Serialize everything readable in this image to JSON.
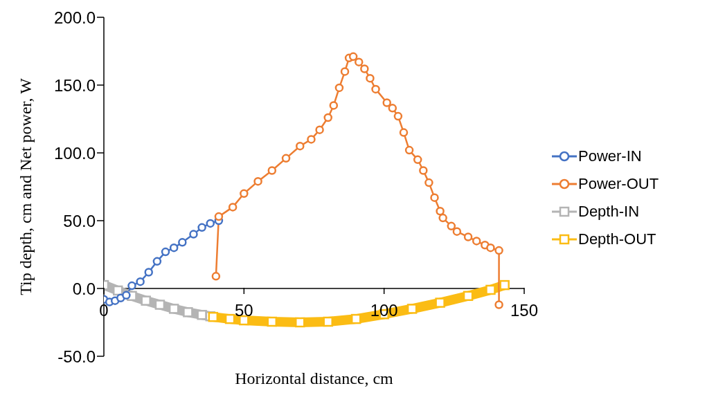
{
  "chart_data": {
    "type": "line",
    "xlabel": "Horizontal distance, cm",
    "ylabel": "Tip depth, cm and Net power, W",
    "xlim": [
      0,
      150
    ],
    "xticks": [
      0,
      50,
      100,
      150
    ],
    "ylim": [
      -50,
      200
    ],
    "yticks": [
      {
        "value": -50,
        "label": "-50.0"
      },
      {
        "value": 0,
        "label": "0.0"
      },
      {
        "value": 50,
        "label": "50.0"
      },
      {
        "value": 100,
        "label": "100.0"
      },
      {
        "value": 150,
        "label": "150.0"
      },
      {
        "value": 200,
        "label": "200.0"
      }
    ],
    "grid": false,
    "legend": "right",
    "series": [
      {
        "name": "Power-IN",
        "color": "#4472c4",
        "marker": "circle",
        "x": [
          0,
          2,
          4,
          6,
          8,
          10,
          13,
          16,
          19,
          22,
          25,
          28,
          32,
          35,
          38,
          41
        ],
        "values": [
          -8,
          -10,
          -9,
          -7,
          -5,
          2,
          5,
          12,
          20,
          27,
          30,
          34,
          40,
          45,
          48,
          50
        ]
      },
      {
        "name": "Power-OUT",
        "color": "#ed7d31",
        "marker": "circle",
        "x": [
          40,
          41,
          46,
          50,
          55,
          60,
          65,
          70,
          74,
          77,
          80,
          82,
          84,
          86,
          87.5,
          89,
          91,
          93,
          95,
          97,
          101,
          103,
          105,
          107,
          109,
          112,
          114,
          116,
          118,
          120,
          121,
          124,
          126,
          130,
          133,
          136,
          138,
          141,
          141
        ],
        "values": [
          9,
          53,
          60,
          70,
          79,
          87,
          96,
          105,
          110,
          117,
          126,
          135,
          148,
          160,
          170,
          171,
          167,
          162,
          155,
          147,
          137,
          133,
          127,
          115,
          102,
          95,
          87,
          78,
          67,
          57,
          52,
          46,
          42,
          38,
          35,
          32,
          30,
          28,
          -12
        ]
      },
      {
        "name": "Depth-IN",
        "color": "#b4b4b4",
        "marker": "square",
        "x": [
          0,
          5,
          10,
          15,
          20,
          25,
          30,
          35,
          38
        ],
        "values": [
          2.5,
          -1.5,
          -5.5,
          -9,
          -12,
          -15,
          -17.5,
          -19.5,
          -20.5
        ]
      },
      {
        "name": "Depth-OUT",
        "color": "#fbbc14",
        "marker": "square",
        "x": [
          39,
          45,
          50,
          60,
          70,
          80,
          90,
          100,
          110,
          120,
          130,
          138,
          143
        ],
        "values": [
          -21,
          -22.5,
          -23.5,
          -24.5,
          -25,
          -24.5,
          -22.5,
          -19,
          -15,
          -10.5,
          -5.5,
          -1,
          2.5
        ]
      }
    ]
  }
}
